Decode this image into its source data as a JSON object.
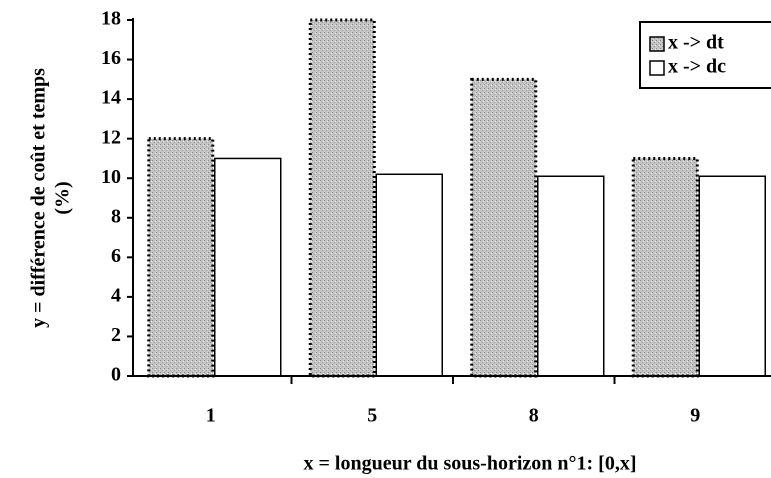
{
  "chart_data": {
    "type": "bar",
    "y_label": [
      "y = différence de coût et temps",
      "(%)"
    ],
    "x_label": "x = longueur du sous-horizon n°1: [0,x]",
    "categories": [
      "1",
      "5",
      "8",
      "9"
    ],
    "series": [
      {
        "name": "x -> dt",
        "color": "#b8b8b8",
        "values": [
          12,
          18,
          15,
          11
        ]
      },
      {
        "name": "x -> dc",
        "color": "#ffffff",
        "values": [
          11,
          10.2,
          10.1,
          10.1
        ]
      }
    ],
    "ylim": [
      0,
      18
    ],
    "yticks": [
      0,
      2,
      4,
      6,
      8,
      10,
      12,
      14,
      16,
      18
    ],
    "legend": "top-right"
  }
}
